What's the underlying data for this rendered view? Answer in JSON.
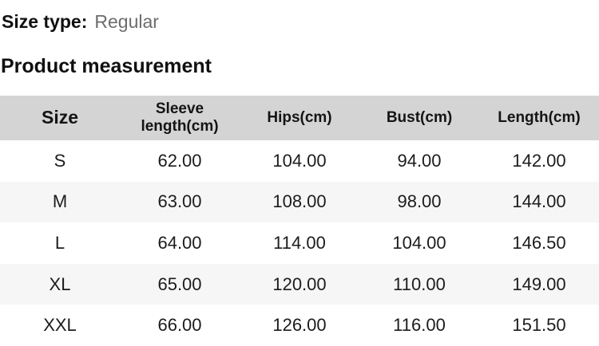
{
  "header": {
    "size_type_label": "Size type:",
    "size_type_value": "Regular",
    "section_title": "Product measurement"
  },
  "table": {
    "columns": [
      "Size",
      "Sleeve length(cm)",
      "Hips(cm)",
      "Bust(cm)",
      "Length(cm)"
    ],
    "rows": [
      [
        "S",
        "62.00",
        "104.00",
        "94.00",
        "142.00"
      ],
      [
        "M",
        "63.00",
        "108.00",
        "98.00",
        "144.00"
      ],
      [
        "L",
        "64.00",
        "114.00",
        "104.00",
        "146.50"
      ],
      [
        "XL",
        "65.00",
        "120.00",
        "110.00",
        "149.00"
      ],
      [
        "XXL",
        "66.00",
        "126.00",
        "116.00",
        "151.50"
      ]
    ]
  },
  "colors": {
    "header_bg": "#d4d4d4",
    "alt_row_bg": "#f6f6f6",
    "text": "#1c1c1c",
    "muted_text": "#6d6d6d"
  }
}
